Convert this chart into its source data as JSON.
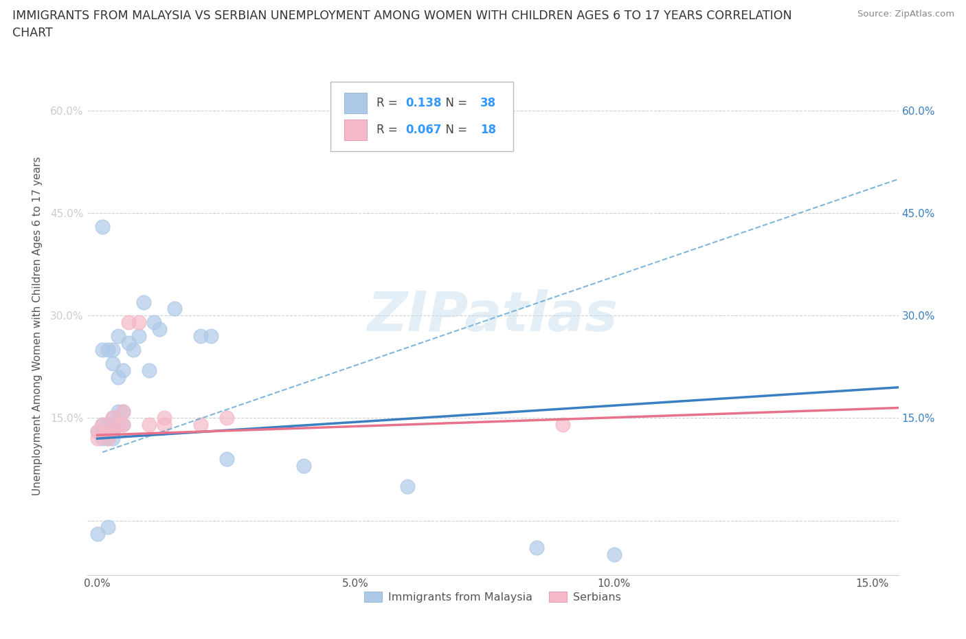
{
  "title_line1": "IMMIGRANTS FROM MALAYSIA VS SERBIAN UNEMPLOYMENT AMONG WOMEN WITH CHILDREN AGES 6 TO 17 YEARS CORRELATION",
  "title_line2": "CHART",
  "source": "Source: ZipAtlas.com",
  "ylabel": "Unemployment Among Women with Children Ages 6 to 17 years",
  "xlabel_blue": "Immigrants from Malaysia",
  "xlabel_pink": "Serbians",
  "xlim": [
    -0.002,
    0.155
  ],
  "ylim": [
    -0.08,
    0.65
  ],
  "xticks": [
    0.0,
    0.05,
    0.1,
    0.15
  ],
  "xtick_labels": [
    "0.0%",
    "5.0%",
    "10.0%",
    "15.0%"
  ],
  "ytick_vals": [
    0.0,
    0.15,
    0.3,
    0.45,
    0.6
  ],
  "ytick_labels_left": [
    "",
    "15.0%",
    "30.0%",
    "45.0%",
    "60.0%"
  ],
  "ytick_labels_right": [
    "",
    "15.0%",
    "30.0%",
    "45.0%",
    "60.0%"
  ],
  "blue_R": "0.138",
  "blue_N": "38",
  "pink_R": "0.067",
  "pink_N": "18",
  "blue_color": "#aec9e8",
  "pink_color": "#f4b8c8",
  "blue_line_color": "#3a7fc1",
  "pink_line_color": "#e8728a",
  "blue_trend_color": "#6aaad4",
  "accent_color": "#3399ff",
  "watermark_color": "#c8dff0",
  "watermark_text": "ZIPatlas",
  "background_color": "#ffffff",
  "grid_color": "#d0d0d0",
  "blue_points_x": [
    0.0,
    0.0,
    0.001,
    0.001,
    0.001,
    0.001,
    0.002,
    0.002,
    0.002,
    0.002,
    0.002,
    0.003,
    0.003,
    0.003,
    0.003,
    0.003,
    0.003,
    0.004,
    0.004,
    0.004,
    0.005,
    0.005,
    0.005,
    0.006,
    0.007,
    0.008,
    0.009,
    0.01,
    0.011,
    0.012,
    0.015,
    0.02,
    0.022,
    0.025,
    0.04,
    0.06,
    0.085,
    0.1
  ],
  "blue_points_y": [
    -0.02,
    0.13,
    0.43,
    0.25,
    0.14,
    0.12,
    0.25,
    0.14,
    0.13,
    0.12,
    -0.01,
    0.25,
    0.23,
    0.15,
    0.14,
    0.13,
    0.12,
    0.27,
    0.21,
    0.16,
    0.22,
    0.16,
    0.14,
    0.26,
    0.25,
    0.27,
    0.32,
    0.22,
    0.29,
    0.28,
    0.31,
    0.27,
    0.27,
    0.09,
    0.08,
    0.05,
    -0.04,
    -0.05
  ],
  "pink_points_x": [
    0.0,
    0.0,
    0.001,
    0.002,
    0.002,
    0.003,
    0.003,
    0.004,
    0.005,
    0.005,
    0.006,
    0.008,
    0.01,
    0.013,
    0.013,
    0.02,
    0.025,
    0.09
  ],
  "pink_points_y": [
    0.13,
    0.12,
    0.14,
    0.13,
    0.12,
    0.15,
    0.13,
    0.14,
    0.16,
    0.14,
    0.29,
    0.29,
    0.14,
    0.14,
    0.15,
    0.14,
    0.15,
    0.14
  ],
  "blue_dashed_trend_x": [
    0.001,
    0.155
  ],
  "blue_dashed_trend_y": [
    0.1,
    0.5
  ],
  "blue_solid_trend_x": [
    0.0,
    0.155
  ],
  "blue_solid_trend_y": [
    0.12,
    0.195
  ],
  "pink_solid_trend_x": [
    0.0,
    0.155
  ],
  "pink_solid_trend_y": [
    0.125,
    0.165
  ]
}
